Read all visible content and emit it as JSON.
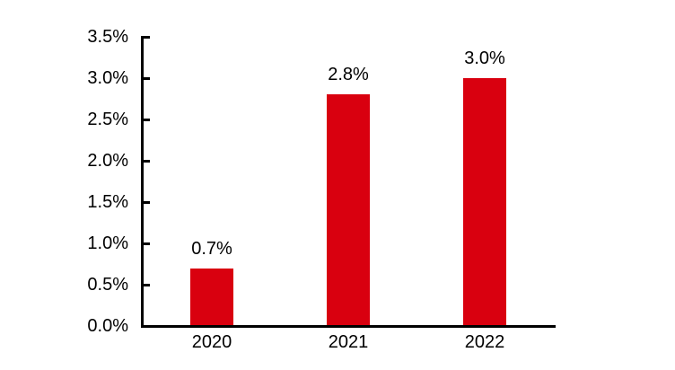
{
  "chart_data": {
    "type": "bar",
    "categories": [
      "2020",
      "2021",
      "2022"
    ],
    "values": [
      0.7,
      2.8,
      3.0
    ],
    "bar_labels": [
      "0.7%",
      "2.8%",
      "3.0%"
    ],
    "title": "",
    "xlabel": "",
    "ylabel": "",
    "ylim": [
      0,
      3.5
    ],
    "ytick_step": 0.5,
    "ytick_labels": [
      "0.0%",
      "0.5%",
      "1.0%",
      "1.5%",
      "2.0%",
      "2.5%",
      "3.0%",
      "3.5%"
    ],
    "grid": false,
    "legend": false,
    "colors": {
      "bar": "#d9000f",
      "axis": "#000000",
      "text": "#000000",
      "background": "#ffffff"
    }
  }
}
